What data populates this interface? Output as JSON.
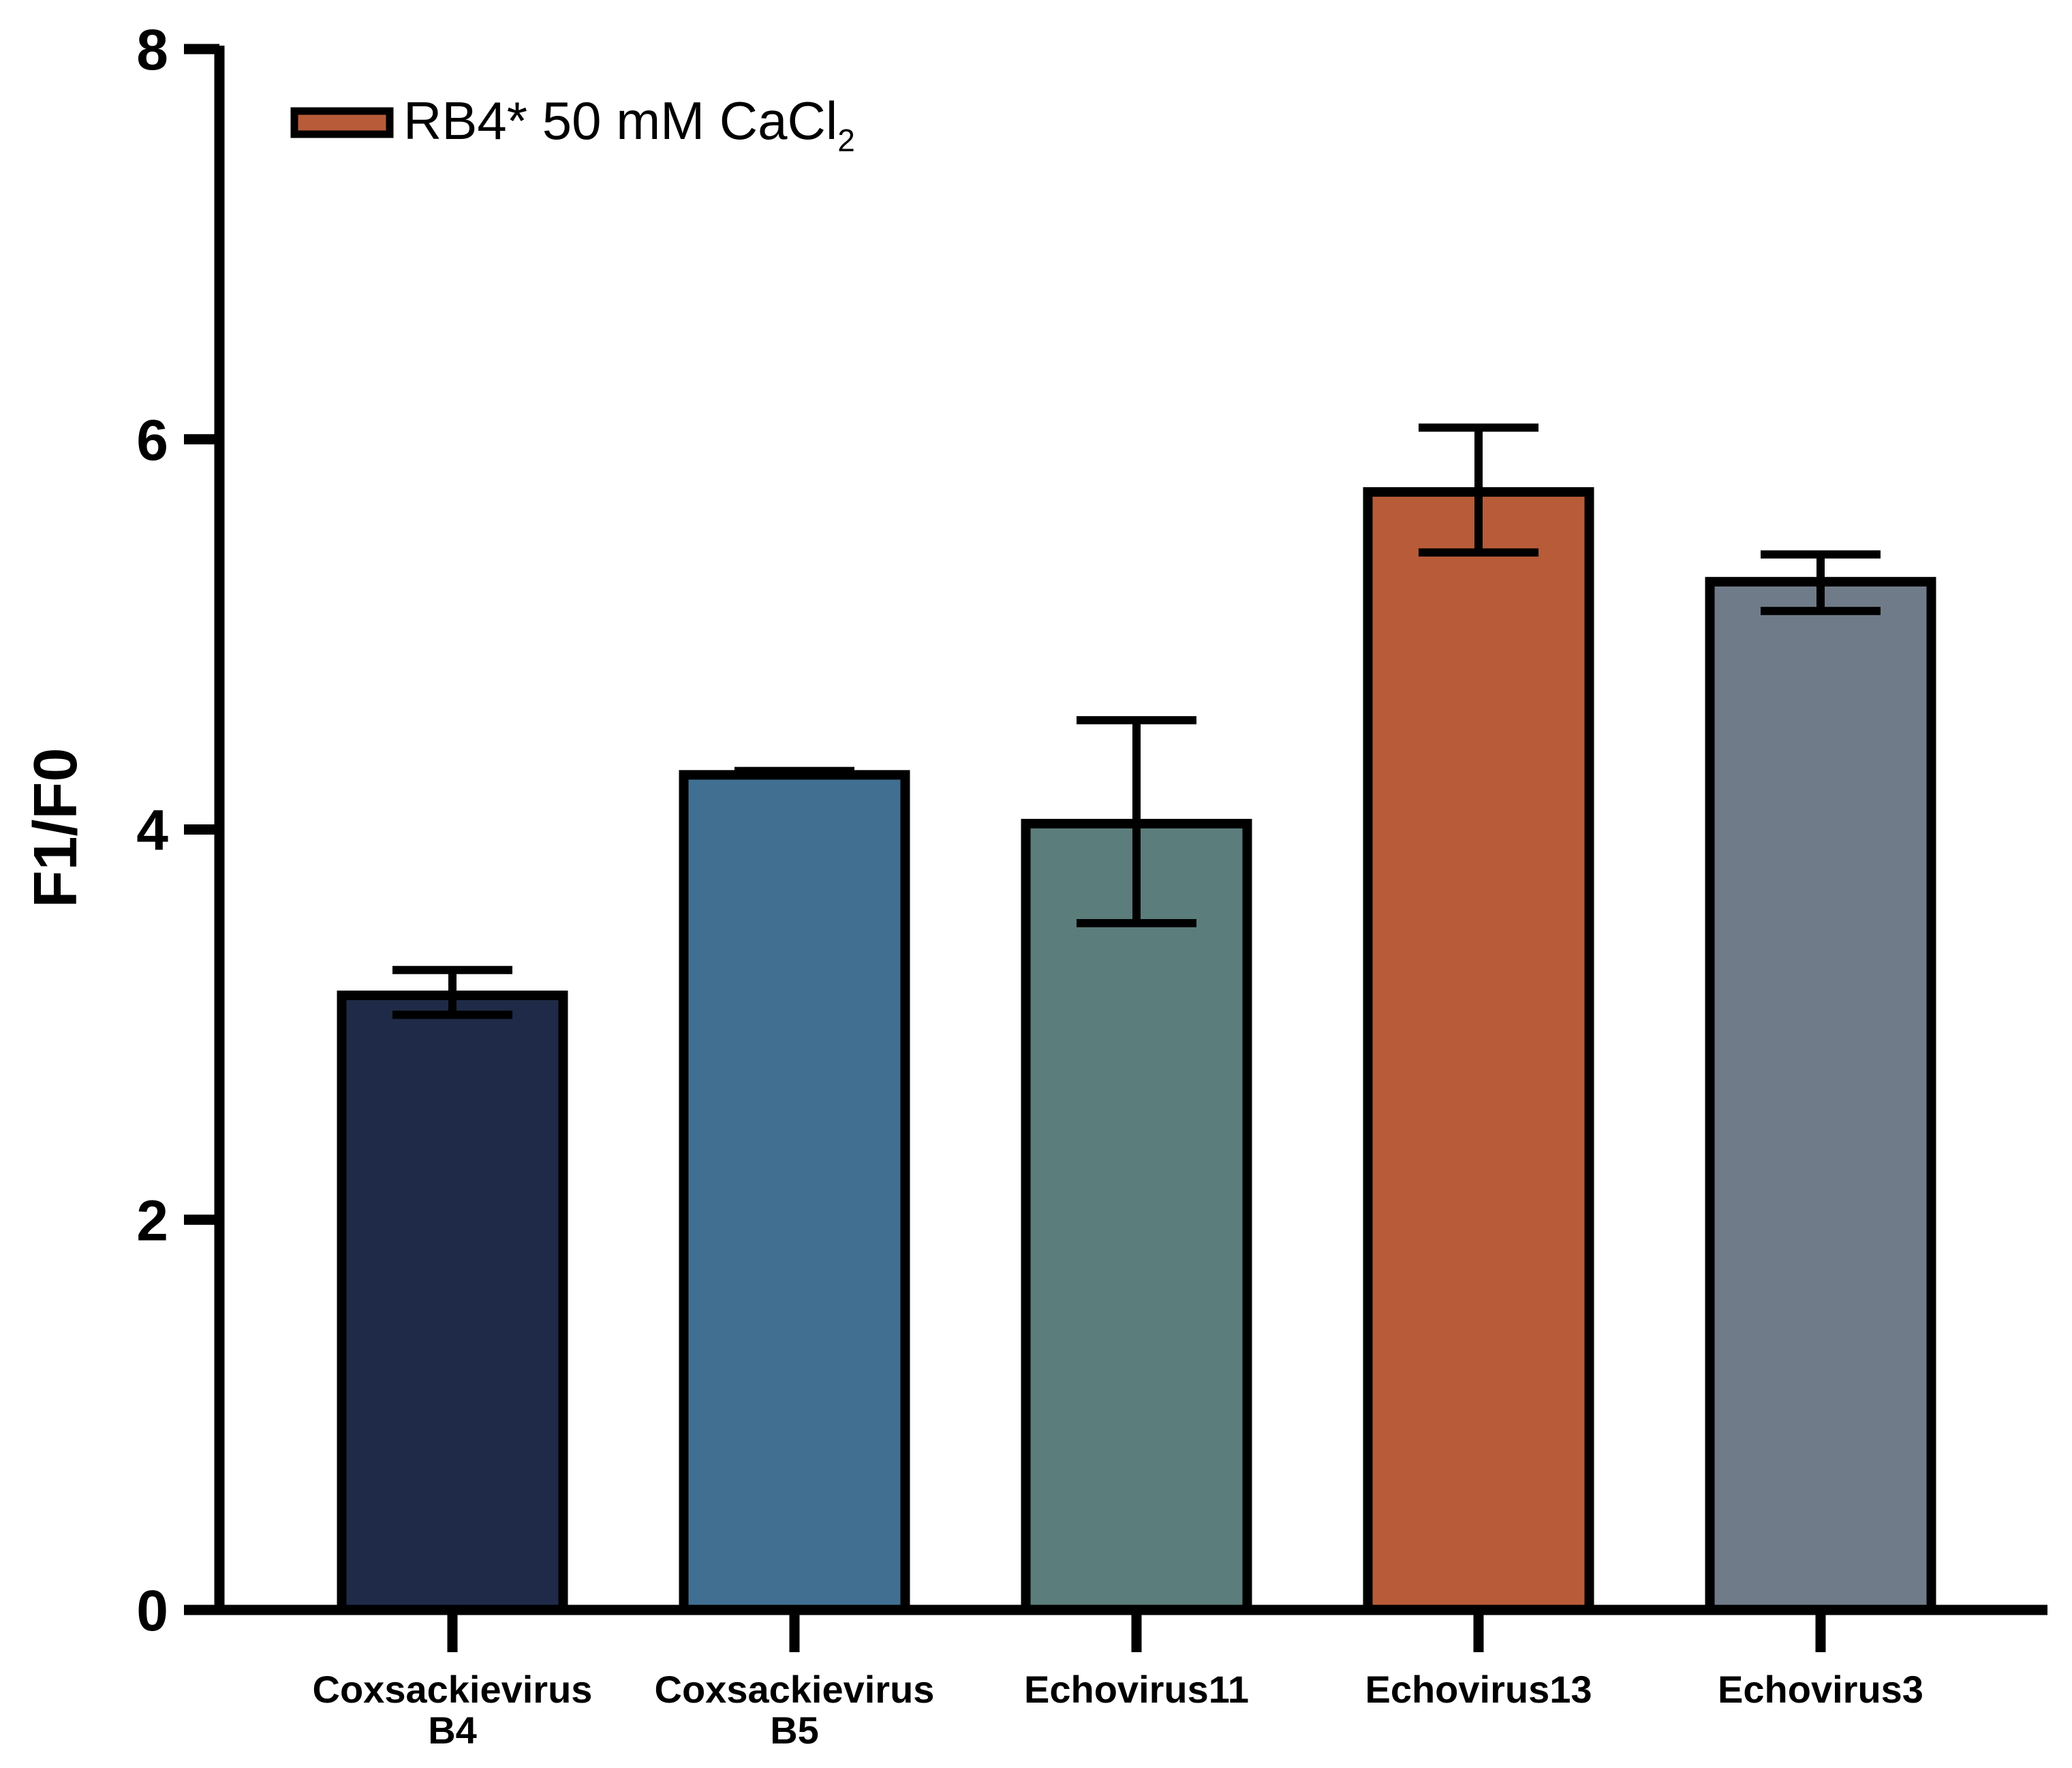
{
  "chart_data": {
    "type": "bar",
    "title": "",
    "xlabel": "",
    "ylabel": "F1/F0",
    "ylim": [
      0,
      8
    ],
    "yticks": [
      "0",
      "2",
      "4",
      "6",
      "8"
    ],
    "grid": false,
    "legend": {
      "position": "top-left",
      "label_main": "RB4* 50 mM CaCl",
      "label_subscript": "2",
      "color": "#B85B38"
    },
    "categories": [
      [
        "Coxsackievirus",
        "B4"
      ],
      [
        "Coxsackievirus",
        "B5"
      ],
      [
        "Echovirus11"
      ],
      [
        "Echovirus13"
      ],
      [
        "Echovirus3"
      ]
    ],
    "values": [
      3.15,
      4.28,
      4.03,
      5.73,
      5.27
    ],
    "error_low": [
      3.05,
      4.28,
      3.52,
      5.42,
      5.12
    ],
    "error_high": [
      3.28,
      4.3,
      4.56,
      6.06,
      5.41
    ],
    "colors": [
      "#1E2A47",
      "#416F91",
      "#5B7D7B",
      "#B85B38",
      "#6F7B88"
    ]
  }
}
